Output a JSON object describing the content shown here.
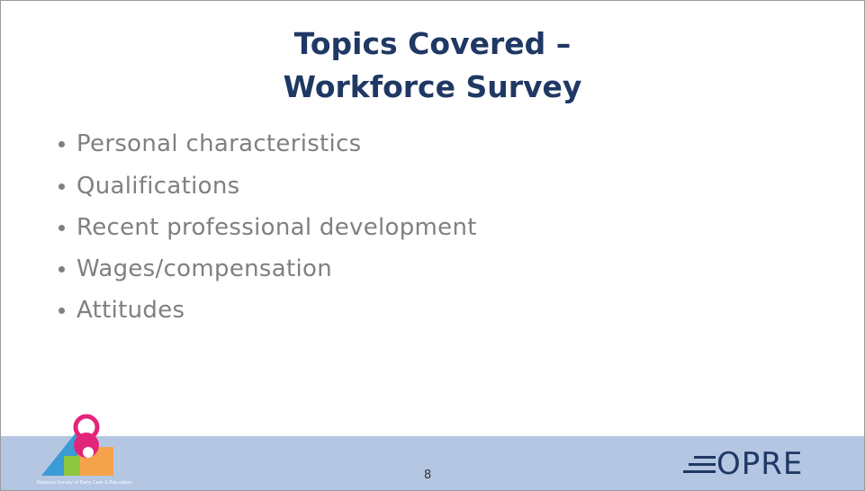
{
  "title": {
    "lines": [
      "Topics Covered –",
      "Workforce Survey"
    ]
  },
  "bullets": [
    "Personal characteristics",
    "Qualifications",
    "Recent professional development",
    "Wages/compensation",
    "Attitudes"
  ],
  "footer": {
    "page_number": "8",
    "logo_text": "OPRE",
    "survey_caption": "National Survey of Early Care & Education"
  }
}
